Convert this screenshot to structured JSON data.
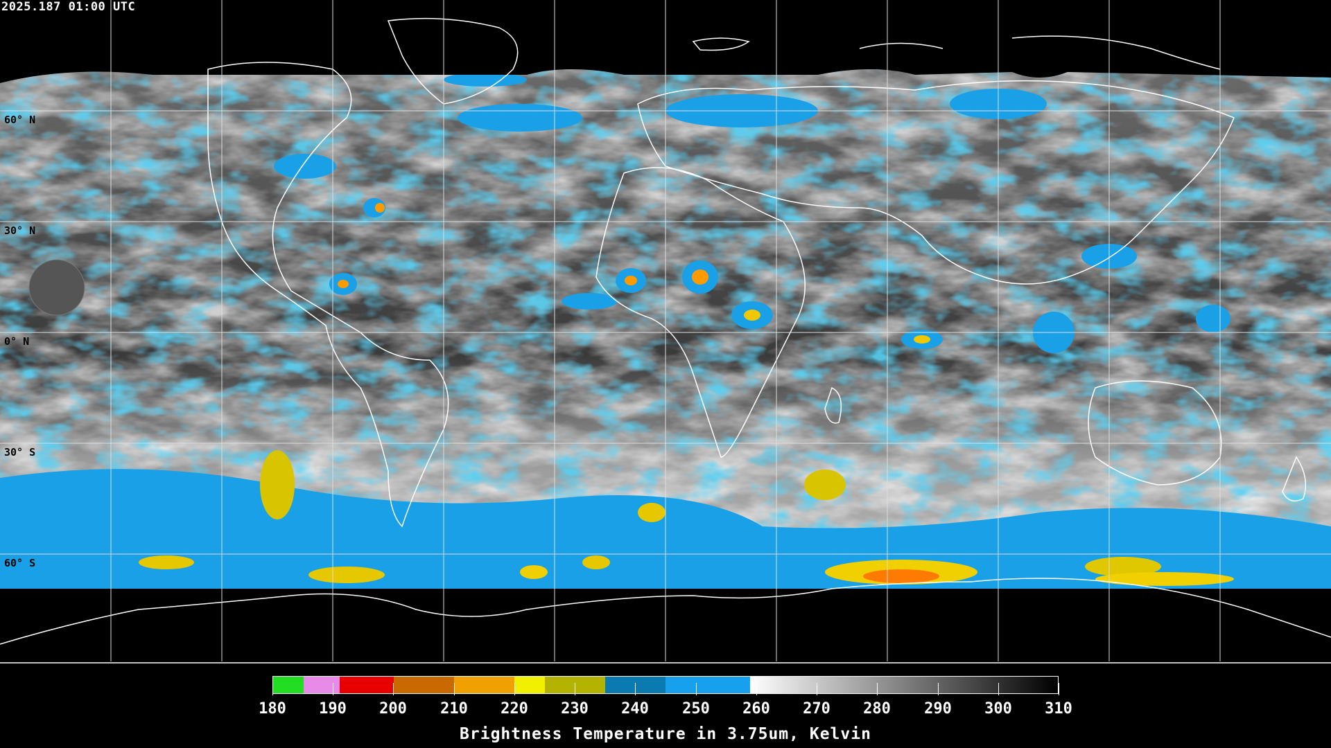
{
  "timestamp": "2025.187 01:00 UTC",
  "lat_labels": [
    "60° N",
    "30° N",
    "0° N",
    "30° S",
    "60° S"
  ],
  "colorbar": {
    "title": "Brightness Temperature in 3.75um, Kelvin",
    "range": [
      180,
      310
    ],
    "ticks": [
      "180",
      "190",
      "200",
      "210",
      "220",
      "230",
      "240",
      "250",
      "260",
      "270",
      "280",
      "290",
      "300",
      "310"
    ],
    "segments": [
      {
        "from": 180,
        "to": 185,
        "color": "#22dd22"
      },
      {
        "from": 185,
        "to": 191,
        "color": "#e88ae8"
      },
      {
        "from": 191,
        "to": 200,
        "color": "#e80000"
      },
      {
        "from": 200,
        "to": 210,
        "color": "#c86a00"
      },
      {
        "from": 210,
        "to": 220,
        "color": "#f0a000"
      },
      {
        "from": 220,
        "to": 225,
        "color": "#f0f000"
      },
      {
        "from": 225,
        "to": 235,
        "color": "#b4b400"
      },
      {
        "from": 235,
        "to": 245,
        "color": "#0a7ab0"
      },
      {
        "from": 245,
        "to": 259,
        "color": "#16a0ee"
      },
      {
        "from": 259,
        "to": 310,
        "color": "gradient-white-black"
      }
    ]
  },
  "colors": {
    "cold_cloud": "#1aa0e6",
    "very_cold": "#f0d000",
    "coldest": "#ff7a00",
    "coastline": "#ffffff",
    "grid": "#dddddd"
  }
}
